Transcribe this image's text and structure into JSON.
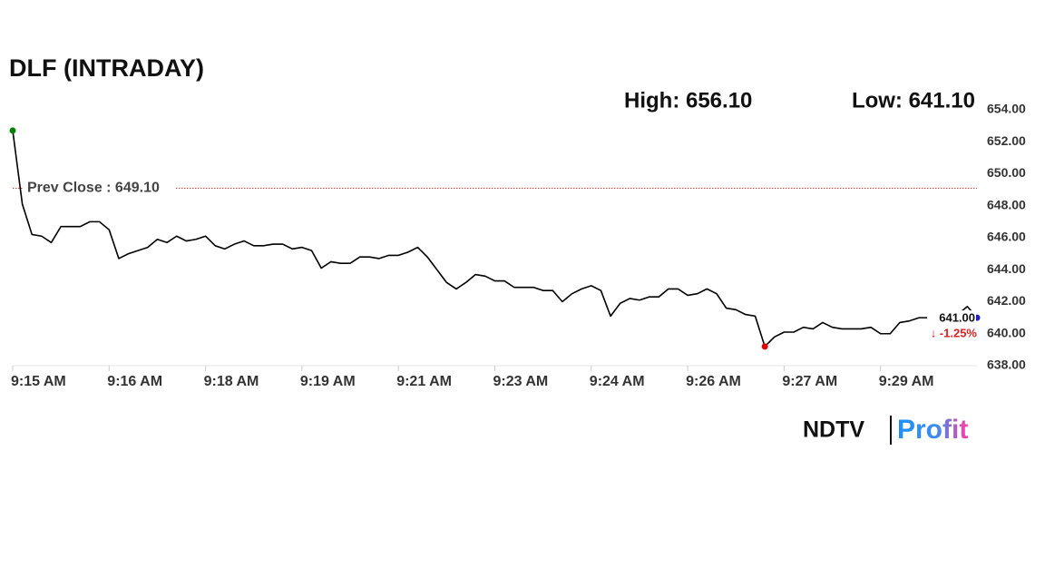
{
  "chart_data": {
    "type": "line",
    "title": "DLF (INTRADAY)",
    "high_label": "High: 656.10",
    "low_label": "Low: 641.10",
    "color": "#000000",
    "categories": [
      "9:15 AM",
      null,
      null,
      null,
      null,
      null,
      null,
      null,
      null,
      null,
      "9:16 AM",
      null,
      null,
      null,
      null,
      null,
      null,
      null,
      null,
      null,
      "9:18 AM",
      null,
      null,
      null,
      null,
      null,
      null,
      null,
      null,
      null,
      "9:19 AM",
      null,
      null,
      null,
      null,
      null,
      null,
      null,
      null,
      null,
      "9:21 AM",
      null,
      null,
      null,
      null,
      null,
      null,
      null,
      null,
      null,
      "9:23 AM",
      null,
      null,
      null,
      null,
      null,
      null,
      null,
      null,
      null,
      "9:24 AM",
      null,
      null,
      null,
      null,
      null,
      null,
      null,
      null,
      null,
      "9:26 AM",
      null,
      null,
      null,
      null,
      null,
      null,
      null,
      null,
      null,
      "9:27 AM",
      null,
      null,
      null,
      null,
      null,
      null,
      null,
      null,
      null,
      "9:29 AM",
      null,
      null,
      null,
      null,
      null,
      null,
      null,
      null,
      null,
      null
    ],
    "values": [
      652.7,
      648.1,
      646.2,
      646.1,
      645.7,
      646.7,
      646.7,
      646.7,
      647.0,
      647.0,
      646.5,
      644.7,
      645.0,
      645.2,
      645.4,
      645.9,
      645.7,
      646.1,
      645.8,
      645.9,
      646.1,
      645.5,
      645.3,
      645.6,
      645.8,
      645.5,
      645.5,
      645.6,
      645.6,
      645.3,
      645.4,
      645.2,
      644.1,
      644.5,
      644.4,
      644.4,
      644.8,
      644.8,
      644.7,
      644.9,
      644.9,
      645.1,
      645.4,
      644.8,
      644.0,
      643.2,
      642.8,
      643.2,
      643.7,
      643.6,
      643.3,
      643.3,
      642.9,
      642.9,
      642.9,
      642.7,
      642.7,
      642.0,
      642.5,
      642.8,
      643.0,
      642.7,
      641.1,
      641.9,
      642.2,
      642.1,
      642.3,
      642.3,
      642.8,
      642.8,
      642.4,
      642.5,
      642.8,
      642.5,
      641.6,
      641.5,
      641.2,
      641.1,
      639.2,
      639.8,
      640.1,
      640.1,
      640.4,
      640.3,
      640.7,
      640.4,
      640.3,
      640.3,
      640.3,
      640.4,
      640.0,
      640.0,
      640.7,
      640.8,
      641.0,
      641.0,
      641.0,
      641.1,
      641.2,
      641.7,
      641.0
    ],
    "ylim": [
      638,
      654
    ],
    "yticks": [
      {
        "value": 638,
        "label": "638.00"
      },
      {
        "value": 640,
        "label": "640.00"
      },
      {
        "value": 642,
        "label": "642.00"
      },
      {
        "value": 644,
        "label": "644.00"
      },
      {
        "value": 646,
        "label": "646.00"
      },
      {
        "value": 648,
        "label": "648.00"
      },
      {
        "value": 650,
        "label": "650.00"
      },
      {
        "value": 652,
        "label": "652.00"
      },
      {
        "value": 654,
        "label": "654.00"
      }
    ],
    "prev_close": {
      "value": 649.1,
      "label": "Prev Close : 649.10",
      "color": "#c0392b"
    },
    "last_price": {
      "value": 641.0,
      "label": "641.00"
    },
    "change_label": "↓ -1.25%",
    "change_color": "#e02020",
    "marker_colors": {
      "start": "#008000",
      "low": "#e00000",
      "last": "#2020c0"
    },
    "brand": {
      "left": "NDTV",
      "right": "Profit"
    }
  }
}
